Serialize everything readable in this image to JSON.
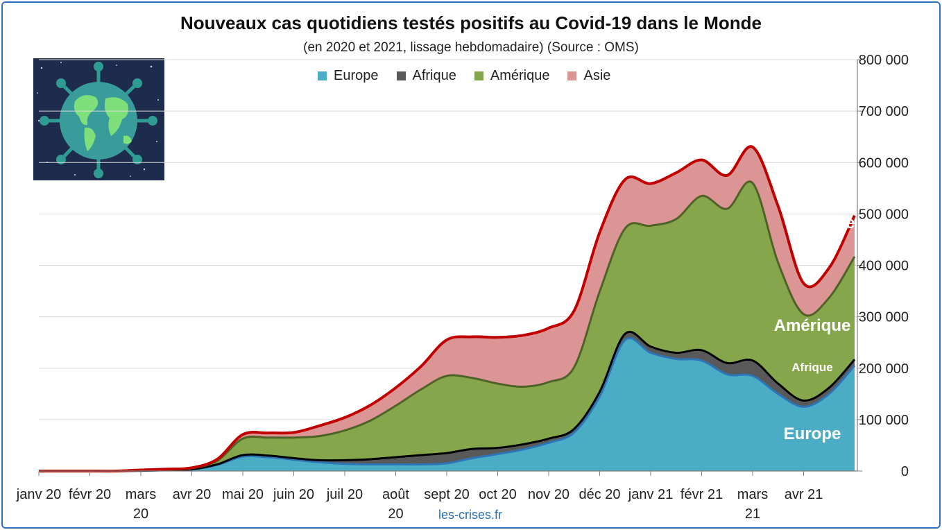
{
  "title": "Nouveaux cas quotidiens testés positifs au Covid-19 dans le Monde",
  "subtitle": "(en 2020 et 2021, lissage hebdomadaire) (Source : OMS)",
  "source": "les-crises.fr",
  "legend": [
    {
      "name": "Europe",
      "color": "#4bacc6"
    },
    {
      "name": "Afrique",
      "color": "#595959"
    },
    {
      "name": "Amérique",
      "color": "#86a64b"
    },
    {
      "name": "Asie",
      "color": "#dc9595"
    }
  ],
  "inline_labels": {
    "asie": "Asie",
    "amerique": "Amérique",
    "afrique": "Afrique",
    "europe": "Europe"
  },
  "chart_data": {
    "type": "area",
    "stacked": true,
    "title": "Nouveaux cas quotidiens testés positifs au Covid-19 dans le Monde",
    "subtitle": "(en 2020 et 2021, lissage hebdomadaire) (Source : OMS)",
    "y_axis_position": "right",
    "ylim": [
      0,
      800000
    ],
    "yticks": [
      "0",
      "100 000",
      "200 000",
      "300 000",
      "400 000",
      "500 000",
      "600 000",
      "700 000",
      "800 000"
    ],
    "x_ticks": [
      {
        "line1": "janv 20",
        "line2": ""
      },
      {
        "line1": "févr 20",
        "line2": ""
      },
      {
        "line1": "mars",
        "line2": "20"
      },
      {
        "line1": "avr 20",
        "line2": ""
      },
      {
        "line1": "mai 20",
        "line2": ""
      },
      {
        "line1": "juin 20",
        "line2": ""
      },
      {
        "line1": "juil 20",
        "line2": ""
      },
      {
        "line1": "août",
        "line2": "20"
      },
      {
        "line1": "sept 20",
        "line2": ""
      },
      {
        "line1": "oct 20",
        "line2": ""
      },
      {
        "line1": "nov 20",
        "line2": ""
      },
      {
        "line1": "déc 20",
        "line2": ""
      },
      {
        "line1": "janv 21",
        "line2": ""
      },
      {
        "line1": "févr 21",
        "line2": ""
      },
      {
        "line1": "mars",
        "line2": "21"
      },
      {
        "line1": "avr 21",
        "line2": ""
      }
    ],
    "x_months": [
      0,
      0.5,
      1,
      1.5,
      2,
      2.5,
      3,
      3.5,
      4,
      4.5,
      5,
      5.5,
      6,
      6.5,
      7,
      7.5,
      8,
      8.5,
      9,
      9.5,
      10,
      10.5,
      11,
      11.5,
      12,
      12.5,
      13,
      13.5,
      14,
      14.5,
      15,
      15.5,
      16
    ],
    "series": [
      {
        "name": "Europe",
        "color": "#4bacc6",
        "line": "#2e75b6",
        "values": [
          0,
          0,
          0,
          0,
          500,
          1500,
          3000,
          12000,
          28000,
          27000,
          22000,
          17000,
          14000,
          13000,
          13000,
          13000,
          15000,
          25000,
          33000,
          42000,
          55000,
          75000,
          145000,
          255000,
          230000,
          218000,
          215000,
          188000,
          185000,
          150000,
          125000,
          150000,
          205000
        ]
      },
      {
        "name": "Afrique",
        "color": "#595959",
        "line": "#000000",
        "values": [
          0,
          0,
          0,
          0,
          0,
          200,
          300,
          1000,
          3000,
          3000,
          3000,
          4000,
          7000,
          10000,
          14000,
          18000,
          20000,
          18000,
          12000,
          10000,
          8000,
          7000,
          9000,
          12000,
          12000,
          12000,
          20000,
          22000,
          30000,
          20000,
          12000,
          12000,
          12000
        ]
      },
      {
        "name": "Amérique",
        "color": "#86a64b",
        "line": "#4f6228",
        "values": [
          0,
          0,
          0,
          0,
          500,
          1000,
          2000,
          7000,
          32000,
          35000,
          40000,
          47000,
          58000,
          75000,
          100000,
          128000,
          150000,
          138000,
          125000,
          112000,
          110000,
          120000,
          195000,
          205000,
          235000,
          260000,
          300000,
          300000,
          345000,
          235000,
          168000,
          175000,
          200000
        ]
      },
      {
        "name": "Asie",
        "color": "#dc9595",
        "line": "#c00000",
        "values": [
          0,
          0,
          0,
          0,
          1000,
          1000,
          1000,
          3000,
          8000,
          9000,
          10000,
          20000,
          25000,
          30000,
          35000,
          45000,
          70000,
          80000,
          90000,
          100000,
          105000,
          110000,
          115000,
          95000,
          82000,
          90000,
          70000,
          65000,
          70000,
          110000,
          60000,
          58000,
          80000
        ]
      }
    ],
    "grid": true,
    "legend_position": "top"
  }
}
